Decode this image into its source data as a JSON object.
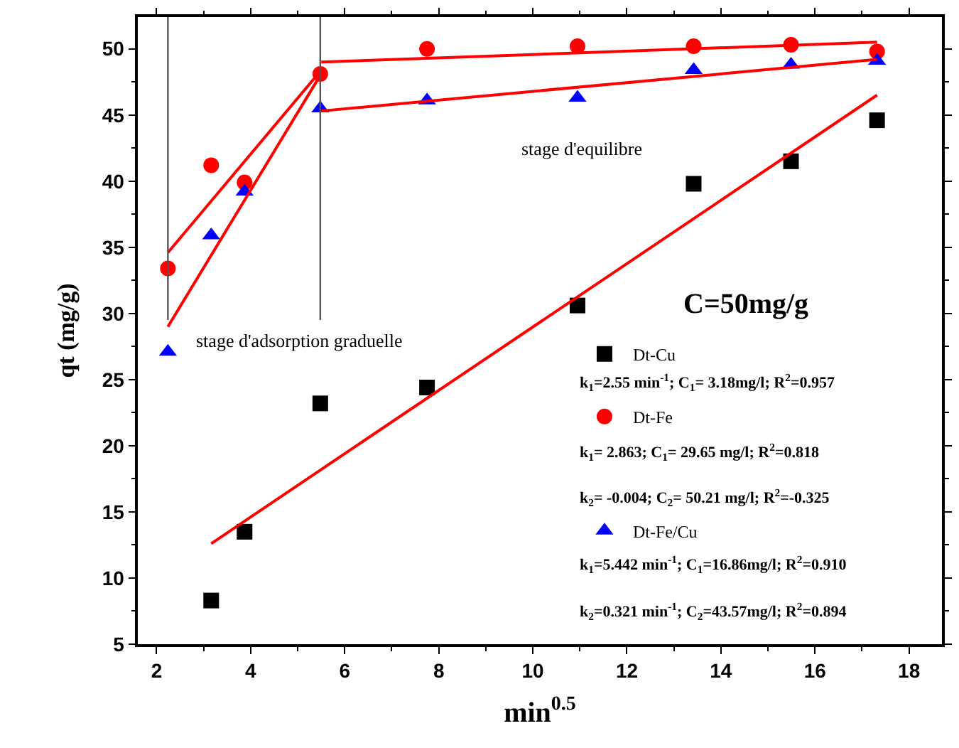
{
  "chart_data": {
    "type": "scatter",
    "xlabel": "min$^{0.5}$",
    "ylabel": "qt (mg/g)",
    "xlim": [
      1.6,
      18.7
    ],
    "xticks": [
      2,
      4,
      6,
      8,
      10,
      12,
      14,
      16,
      18
    ],
    "ylim": [
      5,
      52.4
    ],
    "yticks": [
      5,
      10,
      15,
      20,
      25,
      30,
      35,
      40,
      45,
      50
    ],
    "legend": "bottom right",
    "series": [
      {
        "name": "Dt-Cu",
        "color": "#000000",
        "marker": "square",
        "x": [
          3.16,
          3.87,
          5.48,
          7.75,
          10.95,
          13.42,
          15.49,
          17.32
        ],
        "values": [
          8.3,
          13.5,
          23.2,
          24.4,
          30.6,
          39.8,
          41.5,
          44.6
        ]
      },
      {
        "name": "Dt-Fe",
        "color": "#ff0000",
        "marker": "circle",
        "x": [
          2.24,
          3.16,
          3.87,
          5.48,
          7.75,
          10.95,
          13.42,
          15.49,
          17.32
        ],
        "values": [
          33.4,
          41.2,
          39.9,
          48.1,
          50.0,
          50.2,
          50.2,
          50.3,
          49.8
        ]
      },
      {
        "name": "Dt-Fe/Cu",
        "color": "#0000ff",
        "marker": "triangle",
        "x": [
          2.24,
          3.16,
          3.87,
          5.48,
          7.75,
          10.95,
          13.42,
          15.49,
          17.32
        ],
        "values": [
          27.1,
          35.9,
          39.2,
          45.5,
          46.1,
          46.3,
          48.4,
          48.8,
          49.1
        ]
      },
      {
        "type": "line",
        "color": "#ff0000",
        "x": [
          3.16,
          17.32
        ],
        "values": [
          12.6,
          46.5
        ]
      },
      {
        "type": "line",
        "color": "#ff0000",
        "x": [
          2.24,
          5.48
        ],
        "values": [
          34.6,
          48.3
        ]
      },
      {
        "type": "line",
        "color": "#ff0000",
        "x": [
          5.5,
          17.32
        ],
        "values": [
          49.0,
          50.5
        ]
      },
      {
        "type": "line",
        "color": "#ff0000",
        "x": [
          2.24,
          5.48
        ],
        "values": [
          29.0,
          48.0
        ]
      },
      {
        "type": "line",
        "color": "#ff0000",
        "x": [
          5.5,
          17.32
        ],
        "values": [
          45.3,
          49.2
        ]
      },
      {
        "type": "line",
        "color": "#555555",
        "x": [
          2.24,
          2.24
        ],
        "values": [
          29.5,
          52.4
        ]
      },
      {
        "type": "line",
        "color": "#555555",
        "x": [
          5.48,
          5.48
        ],
        "values": [
          29.5,
          52.4
        ]
      }
    ],
    "annotations": [
      "C=50mg/g",
      "stage d'equilibre",
      "stage d'adsorption graduelle",
      "k$_{1}$=2.55 min$^{-1}$; C$_{1}$= 3.18mg/l; R$^{2}$=0.957",
      "k$_{1}$= 2.863; C$_{1}$= 29.65 mg/l; R$^{2}$=0.818",
      "k$_{2}$= -0.004; C$_{2}$= 50.21 mg/l; R$^{2}$=-0.325",
      "k$_{1}$=5.442 min$^{-1}$; C$_{1}$=16.86mg/l; R$^{2}$=0.910",
      "k$_{2}$=0.321 min$^{-1}$; C$_{2}$=43.57mg/l; R$^{2}$=0.894"
    ]
  }
}
